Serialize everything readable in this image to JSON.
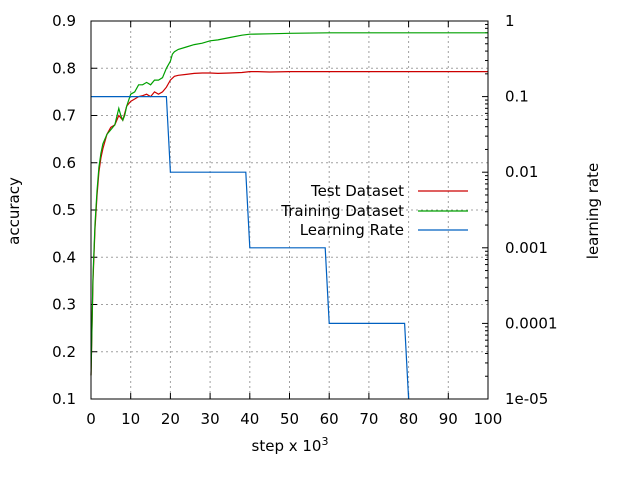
{
  "chart_data": {
    "type": "line",
    "xlabel": "step x 10",
    "xlabel_exponent": "3",
    "ylabel": "accuracy",
    "y2label": "learning rate",
    "xlim": [
      0,
      100
    ],
    "ylim": [
      0.1,
      0.9
    ],
    "y2lim": [
      1e-05,
      1
    ],
    "y2scale": "log",
    "grid": true,
    "legend_position": "right-middle",
    "x_ticks": [
      "0",
      "10",
      "20",
      "30",
      "40",
      "50",
      "60",
      "70",
      "80",
      "90",
      "100"
    ],
    "y_ticks": [
      "0.1",
      "0.2",
      "0.3",
      "0.4",
      "0.5",
      "0.6",
      "0.7",
      "0.8",
      "0.9"
    ],
    "y2_ticks": [
      "1e-05",
      "0.0001",
      "0.001",
      "0.01",
      "0.1",
      "1"
    ],
    "series": [
      {
        "name": "Test Dataset",
        "axis": "y",
        "color": "#cc0000",
        "x": [
          0,
          0.5,
          1,
          1.5,
          2,
          2.5,
          3,
          4,
          5,
          6,
          7,
          8,
          9,
          10,
          11,
          12,
          13,
          14,
          15,
          16,
          17,
          18,
          19,
          20,
          21,
          22,
          24,
          26,
          28,
          30,
          32,
          35,
          38,
          40,
          42,
          45,
          50,
          60,
          70,
          80,
          90,
          100
        ],
        "y": [
          0.15,
          0.35,
          0.46,
          0.53,
          0.58,
          0.61,
          0.63,
          0.66,
          0.675,
          0.68,
          0.7,
          0.69,
          0.72,
          0.73,
          0.735,
          0.74,
          0.742,
          0.745,
          0.74,
          0.75,
          0.745,
          0.75,
          0.76,
          0.775,
          0.783,
          0.785,
          0.787,
          0.789,
          0.79,
          0.79,
          0.789,
          0.79,
          0.791,
          0.793,
          0.793,
          0.792,
          0.793,
          0.793,
          0.793,
          0.793,
          0.793,
          0.793
        ]
      },
      {
        "name": "Training Dataset",
        "axis": "y",
        "color": "#00a000",
        "x": [
          0,
          0.5,
          1,
          1.5,
          2,
          2.5,
          3,
          4,
          5,
          6,
          7,
          7.5,
          8,
          8.5,
          9,
          10,
          11,
          12,
          13,
          14,
          15,
          16,
          17,
          18,
          19,
          20,
          20.5,
          21,
          22,
          24,
          26,
          28,
          30,
          32,
          35,
          38,
          40,
          45,
          50,
          60,
          70,
          80,
          90,
          100
        ],
        "y": [
          0.15,
          0.36,
          0.47,
          0.54,
          0.59,
          0.62,
          0.64,
          0.66,
          0.67,
          0.68,
          0.715,
          0.7,
          0.69,
          0.7,
          0.72,
          0.745,
          0.75,
          0.765,
          0.765,
          0.77,
          0.765,
          0.775,
          0.775,
          0.78,
          0.8,
          0.815,
          0.83,
          0.835,
          0.84,
          0.845,
          0.85,
          0.853,
          0.858,
          0.86,
          0.865,
          0.87,
          0.872,
          0.873,
          0.874,
          0.875,
          0.875,
          0.875,
          0.875,
          0.875
        ]
      },
      {
        "name": "Learning Rate",
        "axis": "y2",
        "color": "#0060c0",
        "step": true,
        "x": [
          0,
          19,
          20,
          39,
          40,
          59,
          60,
          79,
          80
        ],
        "y": [
          0.1,
          0.1,
          0.01,
          0.01,
          0.001,
          0.001,
          0.0001,
          0.0001,
          1e-05
        ]
      }
    ]
  }
}
